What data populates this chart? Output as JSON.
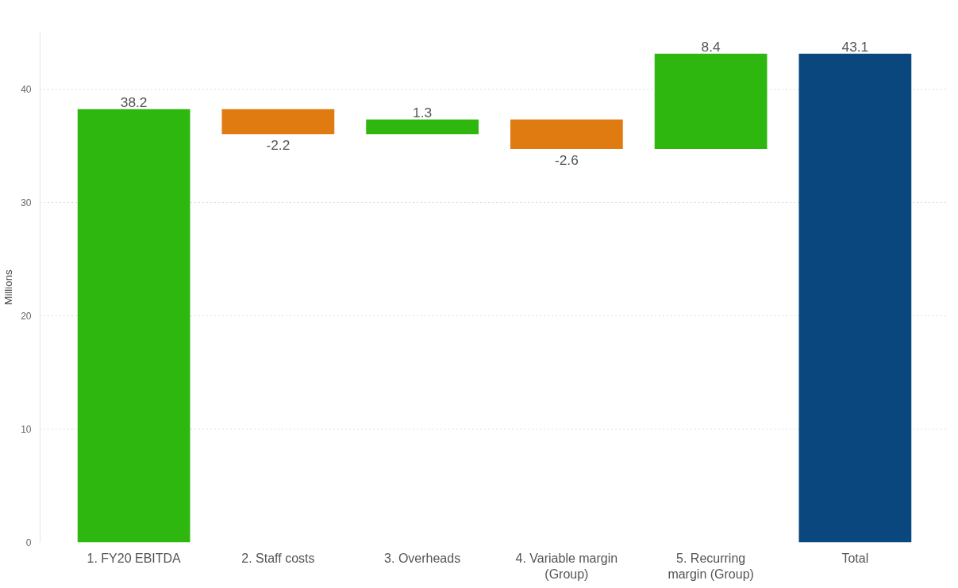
{
  "chart_data": {
    "type": "bar",
    "categories": [
      "1. FY20 EBITDA",
      "2. Staff costs",
      "3. Overheads",
      "4. Variable margin (Group)",
      "5. Recurring margin (Group)",
      "Total"
    ],
    "values": [
      38.2,
      -2.2,
      1.3,
      -2.6,
      8.4,
      43.1
    ],
    "base": [
      0,
      38.2,
      36.0,
      37.3,
      34.7,
      0
    ],
    "colors": [
      "#2db70f",
      "#e07b12",
      "#2db70f",
      "#e07b12",
      "#2db70f",
      "#0a477e"
    ],
    "ylabel": "Millions",
    "ylim": [
      0,
      45
    ],
    "yticks": [
      0,
      10,
      20,
      30,
      40
    ],
    "grid": "y",
    "data_labels": true
  }
}
